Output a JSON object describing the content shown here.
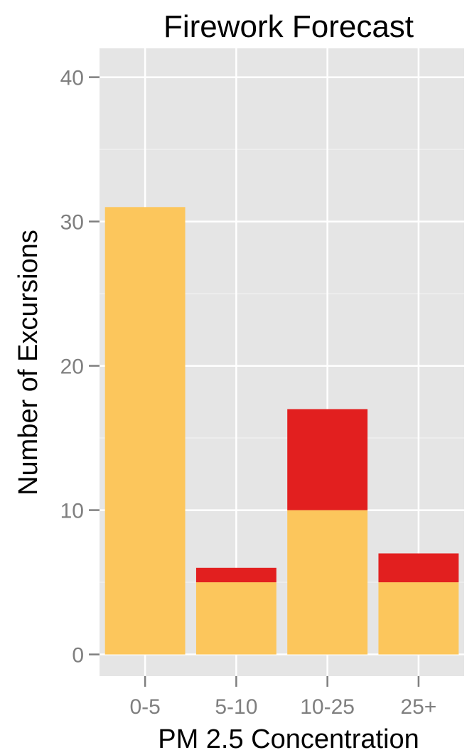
{
  "chart_data": {
    "type": "bar",
    "stacked": true,
    "title": "Firework Forecast",
    "xlabel": "PM 2.5 Concentration",
    "ylabel": "Number of Excursions",
    "categories": [
      "0-5",
      "5-10",
      "10-25",
      "25+"
    ],
    "series": [
      {
        "values": [
          31,
          5,
          10,
          5
        ],
        "color": "#FCC65C"
      },
      {
        "values": [
          0,
          1,
          7,
          2
        ],
        "color": "#E21F1F"
      }
    ],
    "ylim": [
      -1.5,
      42
    ],
    "yticks": [
      0,
      10,
      20,
      30,
      40
    ],
    "yticks_text": [
      "0",
      "10",
      "20",
      "30",
      "40"
    ],
    "grid": true,
    "legend": "none",
    "colors": {
      "panel": "#E5E5E5",
      "grid_major": "#FFFFFF",
      "grid_minor": "#F2F2F2",
      "tick": "#7F7F7F"
    }
  }
}
